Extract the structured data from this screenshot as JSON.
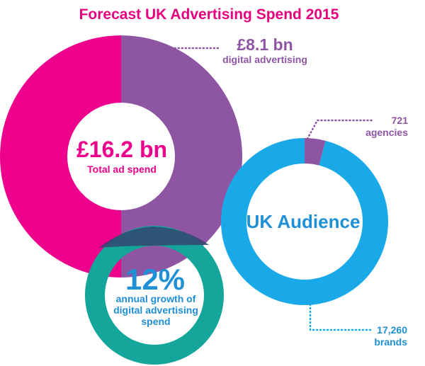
{
  "title": "Forecast UK Advertising Spend 2015",
  "colors": {
    "title": "#e6007e",
    "magenta": "#ec008c",
    "purple": "#8e55a3",
    "teal": "#14a69a",
    "blue": "#1aa9e8",
    "navy": "#1f8fd6",
    "overlap": "#33476e",
    "white": "#ffffff"
  },
  "chart_data": [
    {
      "type": "pie",
      "name": "Total ad spend",
      "center_value": "£16.2 bn",
      "center_label": "Total ad spend",
      "slices": [
        {
          "label": "digital advertising",
          "value": 8.1,
          "display": "£8.1 bn"
        },
        {
          "label": "",
          "value": 8.1
        }
      ],
      "annotation": {
        "value": "£8.1 bn",
        "label": "digital advertising"
      }
    },
    {
      "type": "pie",
      "name": "UK Audience",
      "center_label": "UK Audience",
      "slices": [
        {
          "label": "agencies",
          "value": 721,
          "display": "721"
        },
        {
          "label": "brands",
          "value": 17260,
          "display": "17,260"
        }
      ],
      "annotations": [
        {
          "value": "721",
          "label": "agencies"
        },
        {
          "value": "17,260",
          "label": "brands"
        }
      ]
    },
    {
      "type": "pie",
      "name": "annual growth",
      "center_value": "12%",
      "center_label_lines": [
        "annual growth of",
        "digital advertising",
        "spend"
      ]
    }
  ]
}
